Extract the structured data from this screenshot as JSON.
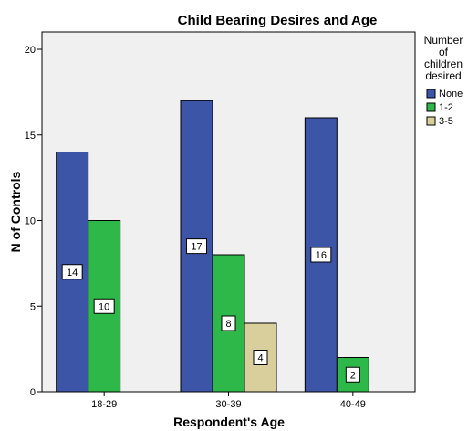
{
  "chart_data": {
    "type": "bar",
    "title": "Child Bearing Desires and Age",
    "xlabel": "Respondent's Age",
    "ylabel": "N of Controls",
    "categories": [
      "18-29",
      "30-39",
      "40-49"
    ],
    "series": [
      {
        "name": "None",
        "values": [
          14,
          17,
          16
        ],
        "color": "#3d55a6"
      },
      {
        "name": "1-2",
        "values": [
          10,
          8,
          2
        ],
        "color": "#2fb84a"
      },
      {
        "name": "3-5",
        "values": [
          null,
          4,
          null
        ],
        "color": "#d8cf9d"
      }
    ],
    "ylim": [
      0,
      20
    ],
    "yticks": [
      0,
      5,
      10,
      15,
      20
    ],
    "grid": false,
    "plot_background": "#f0f0f0",
    "legend": {
      "title_lines": [
        "Number",
        "of",
        "children",
        "desired"
      ],
      "placement": "right"
    }
  }
}
